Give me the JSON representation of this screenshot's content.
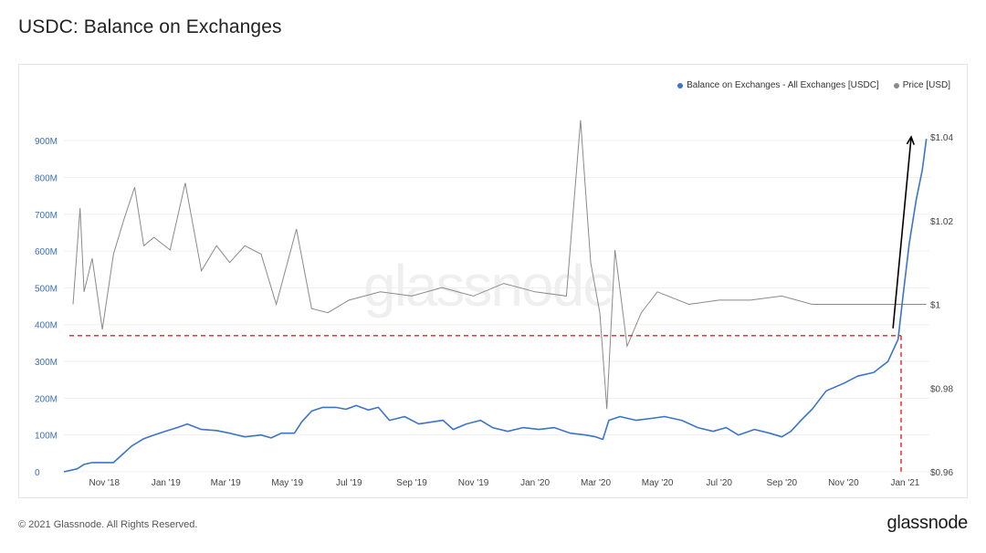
{
  "title": "USDC: Balance on Exchanges",
  "footer": {
    "copyright": "© 2021 Glassnode. All Rights Reserved.",
    "logo": "glassnode"
  },
  "watermark": "glassnode",
  "colors": {
    "balance": "#3b74c9",
    "price": "#8a8a8a",
    "left_axis_text": "#3b6fb5",
    "reference": "#e02020",
    "arrow": "#000000"
  },
  "chart_data": {
    "type": "line",
    "title": "USDC: Balance on Exchanges",
    "legend": {
      "placement": "top-right"
    },
    "grid": true,
    "x_axis": {
      "range": [
        "2018-09-22",
        "2021-01-25"
      ],
      "ticks": [
        {
          "date": "2018-11-01",
          "label": "Nov '18"
        },
        {
          "date": "2019-01-01",
          "label": "Jan '19"
        },
        {
          "date": "2019-03-01",
          "label": "Mar '19"
        },
        {
          "date": "2019-05-01",
          "label": "May '19"
        },
        {
          "date": "2019-07-01",
          "label": "Jul '19"
        },
        {
          "date": "2019-09-01",
          "label": "Sep '19"
        },
        {
          "date": "2019-11-01",
          "label": "Nov '19"
        },
        {
          "date": "2020-01-01",
          "label": "Jan '20"
        },
        {
          "date": "2020-03-01",
          "label": "Mar '20"
        },
        {
          "date": "2020-05-01",
          "label": "May '20"
        },
        {
          "date": "2020-07-01",
          "label": "Jul '20"
        },
        {
          "date": "2020-09-01",
          "label": "Sep '20"
        },
        {
          "date": "2020-11-01",
          "label": "Nov '20"
        },
        {
          "date": "2021-01-01",
          "label": "Jan '21"
        }
      ]
    },
    "y_left": {
      "range": [
        0,
        950000000
      ],
      "ticks": [
        {
          "value": 0,
          "label": "0"
        },
        {
          "value": 100000000,
          "label": "100M"
        },
        {
          "value": 200000000,
          "label": "200M"
        },
        {
          "value": 300000000,
          "label": "300M"
        },
        {
          "value": 400000000,
          "label": "400M"
        },
        {
          "value": 500000000,
          "label": "500M"
        },
        {
          "value": 600000000,
          "label": "600M"
        },
        {
          "value": 700000000,
          "label": "700M"
        },
        {
          "value": 800000000,
          "label": "800M"
        },
        {
          "value": 900000000,
          "label": "900M"
        }
      ]
    },
    "y_right": {
      "range": [
        0.96,
        1.0435
      ],
      "ticks": [
        {
          "value": 0.96,
          "label": "$0.96"
        },
        {
          "value": 0.98,
          "label": "$0.98"
        },
        {
          "value": 1.0,
          "label": "$1"
        },
        {
          "value": 1.02,
          "label": "$1.02"
        },
        {
          "value": 1.04,
          "label": "$1.04"
        }
      ]
    },
    "series": [
      {
        "name": "Balance on Exchanges - All Exchanges [USDC]",
        "axis": "left",
        "color": "#3b74c9",
        "points": [
          [
            "2018-09-22",
            0
          ],
          [
            "2018-10-05",
            8000000
          ],
          [
            "2018-10-12",
            20000000
          ],
          [
            "2018-10-20",
            25000000
          ],
          [
            "2018-11-10",
            25000000
          ],
          [
            "2018-11-18",
            45000000
          ],
          [
            "2018-11-28",
            70000000
          ],
          [
            "2018-12-10",
            90000000
          ],
          [
            "2018-12-20",
            100000000
          ],
          [
            "2018-12-31",
            110000000
          ],
          [
            "2019-01-12",
            120000000
          ],
          [
            "2019-01-22",
            130000000
          ],
          [
            "2019-02-05",
            115000000
          ],
          [
            "2019-02-20",
            112000000
          ],
          [
            "2019-03-05",
            105000000
          ],
          [
            "2019-03-20",
            95000000
          ],
          [
            "2019-04-05",
            100000000
          ],
          [
            "2019-04-15",
            92000000
          ],
          [
            "2019-04-25",
            105000000
          ],
          [
            "2019-05-08",
            105000000
          ],
          [
            "2019-05-15",
            135000000
          ],
          [
            "2019-05-25",
            165000000
          ],
          [
            "2019-06-05",
            175000000
          ],
          [
            "2019-06-18",
            175000000
          ],
          [
            "2019-06-28",
            170000000
          ],
          [
            "2019-07-08",
            180000000
          ],
          [
            "2019-07-20",
            168000000
          ],
          [
            "2019-07-30",
            175000000
          ],
          [
            "2019-08-10",
            140000000
          ],
          [
            "2019-08-25",
            150000000
          ],
          [
            "2019-09-08",
            130000000
          ],
          [
            "2019-09-20",
            135000000
          ],
          [
            "2019-10-02",
            140000000
          ],
          [
            "2019-10-12",
            115000000
          ],
          [
            "2019-10-25",
            130000000
          ],
          [
            "2019-11-08",
            140000000
          ],
          [
            "2019-11-20",
            120000000
          ],
          [
            "2019-12-05",
            110000000
          ],
          [
            "2019-12-20",
            120000000
          ],
          [
            "2020-01-05",
            115000000
          ],
          [
            "2020-01-20",
            120000000
          ],
          [
            "2020-02-05",
            105000000
          ],
          [
            "2020-02-20",
            100000000
          ],
          [
            "2020-03-01",
            95000000
          ],
          [
            "2020-03-08",
            88000000
          ],
          [
            "2020-03-14",
            140000000
          ],
          [
            "2020-03-25",
            150000000
          ],
          [
            "2020-04-10",
            140000000
          ],
          [
            "2020-04-25",
            145000000
          ],
          [
            "2020-05-08",
            150000000
          ],
          [
            "2020-05-25",
            140000000
          ],
          [
            "2020-06-10",
            120000000
          ],
          [
            "2020-06-25",
            110000000
          ],
          [
            "2020-07-08",
            120000000
          ],
          [
            "2020-07-20",
            100000000
          ],
          [
            "2020-08-05",
            115000000
          ],
          [
            "2020-08-20",
            105000000
          ],
          [
            "2020-09-01",
            95000000
          ],
          [
            "2020-09-10",
            110000000
          ],
          [
            "2020-09-20",
            140000000
          ],
          [
            "2020-10-01",
            170000000
          ],
          [
            "2020-10-15",
            220000000
          ],
          [
            "2020-11-01",
            240000000
          ],
          [
            "2020-11-15",
            260000000
          ],
          [
            "2020-12-01",
            270000000
          ],
          [
            "2020-12-15",
            300000000
          ],
          [
            "2020-12-25",
            360000000
          ],
          [
            "2020-12-30",
            480000000
          ],
          [
            "2021-01-05",
            620000000
          ],
          [
            "2021-01-12",
            740000000
          ],
          [
            "2021-01-18",
            820000000
          ],
          [
            "2021-01-22",
            905000000
          ]
        ]
      },
      {
        "name": "Price [USD]",
        "axis": "right",
        "color": "#8a8a8a",
        "points": [
          [
            "2018-10-01",
            1.0
          ],
          [
            "2018-10-08",
            1.023
          ],
          [
            "2018-10-12",
            1.003
          ],
          [
            "2018-10-20",
            1.011
          ],
          [
            "2018-10-30",
            0.994
          ],
          [
            "2018-11-10",
            1.012
          ],
          [
            "2018-11-20",
            1.02
          ],
          [
            "2018-12-01",
            1.028
          ],
          [
            "2018-12-10",
            1.014
          ],
          [
            "2018-12-20",
            1.016
          ],
          [
            "2019-01-05",
            1.013
          ],
          [
            "2019-01-20",
            1.029
          ],
          [
            "2019-02-05",
            1.008
          ],
          [
            "2019-02-20",
            1.014
          ],
          [
            "2019-03-05",
            1.01
          ],
          [
            "2019-03-20",
            1.014
          ],
          [
            "2019-04-05",
            1.012
          ],
          [
            "2019-04-20",
            1.0
          ],
          [
            "2019-05-10",
            1.018
          ],
          [
            "2019-05-25",
            0.999
          ],
          [
            "2019-06-10",
            0.998
          ],
          [
            "2019-07-01",
            1.001
          ],
          [
            "2019-08-01",
            1.003
          ],
          [
            "2019-09-01",
            1.002
          ],
          [
            "2019-10-01",
            1.004
          ],
          [
            "2019-11-01",
            1.002
          ],
          [
            "2019-12-01",
            1.005
          ],
          [
            "2020-01-01",
            1.003
          ],
          [
            "2020-02-01",
            1.002
          ],
          [
            "2020-02-15",
            1.044
          ],
          [
            "2020-02-25",
            1.01
          ],
          [
            "2020-03-05",
            0.998
          ],
          [
            "2020-03-12",
            0.975
          ],
          [
            "2020-03-20",
            1.013
          ],
          [
            "2020-04-01",
            0.99
          ],
          [
            "2020-04-15",
            0.998
          ],
          [
            "2020-05-01",
            1.003
          ],
          [
            "2020-06-01",
            1.0
          ],
          [
            "2020-07-01",
            1.001
          ],
          [
            "2020-08-01",
            1.001
          ],
          [
            "2020-09-01",
            1.002
          ],
          [
            "2020-10-01",
            1.0
          ],
          [
            "2020-11-01",
            1.0
          ],
          [
            "2020-12-01",
            1.0
          ],
          [
            "2021-01-01",
            1.0
          ],
          [
            "2021-01-22",
            1.0
          ]
        ]
      }
    ],
    "annotations": [
      {
        "type": "hline",
        "axis": "left",
        "value": 370000000,
        "x_from": "2018-09-22",
        "x_to": "2020-12-28",
        "color": "#e02020",
        "style": "dashed"
      },
      {
        "type": "vline",
        "x": "2020-12-28",
        "y_from": 370000000,
        "y_to": 0,
        "color": "#e02020",
        "style": "dashed"
      },
      {
        "type": "arrow",
        "from": [
          "2020-12-20",
          390000000
        ],
        "to": [
          "2021-01-07",
          910000000
        ],
        "color": "#000000"
      }
    ]
  }
}
